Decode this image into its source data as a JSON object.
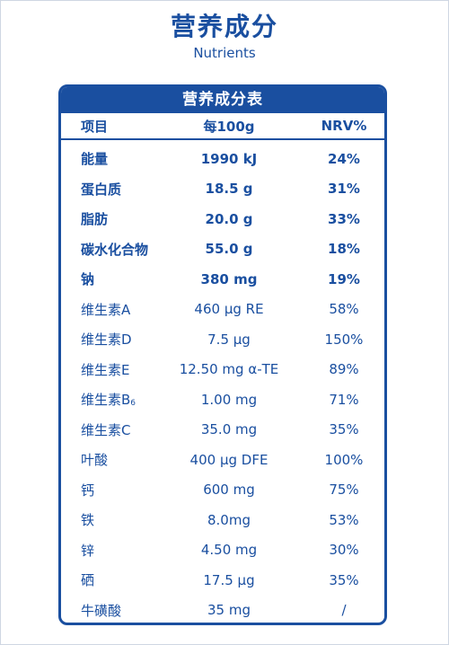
{
  "header": {
    "title": "营养成分",
    "subtitle": "Nutrients"
  },
  "table": {
    "caption": "营养成分表",
    "columns": [
      "项目",
      "每100g",
      "NRV%"
    ],
    "rows": [
      {
        "name": "能量",
        "amount": "1990 kJ",
        "nrv": "24%",
        "bold": true
      },
      {
        "name": "蛋白质",
        "amount": "18.5 g",
        "nrv": "31%",
        "bold": true
      },
      {
        "name": "脂肪",
        "amount": "20.0 g",
        "nrv": "33%",
        "bold": true
      },
      {
        "name": "碳水化合物",
        "amount": "55.0 g",
        "nrv": "18%",
        "bold": true
      },
      {
        "name": "钠",
        "amount": "380 mg",
        "nrv": "19%",
        "bold": true
      },
      {
        "name": "维生素A",
        "amount": "460 μg RE",
        "nrv": "58%",
        "bold": false
      },
      {
        "name": "维生素D",
        "amount": "7.5 μg",
        "nrv": "150%",
        "bold": false
      },
      {
        "name": "维生素E",
        "amount": "12.50 mg α-TE",
        "nrv": "89%",
        "bold": false
      },
      {
        "name": "维生素B",
        "name_sub": "6",
        "amount": "1.00 mg",
        "nrv": "71%",
        "bold": false
      },
      {
        "name": "维生素C",
        "amount": "35.0 mg",
        "nrv": "35%",
        "bold": false
      },
      {
        "name": "叶酸",
        "amount": "400 μg DFE",
        "nrv": "100%",
        "bold": false
      },
      {
        "name": "钙",
        "amount": "600 mg",
        "nrv": "75%",
        "bold": false
      },
      {
        "name": "铁",
        "amount": "8.0mg",
        "nrv": "53%",
        "bold": false
      },
      {
        "name": "锌",
        "amount": "4.50 mg",
        "nrv": "30%",
        "bold": false
      },
      {
        "name": "硒",
        "amount": "17.5 μg",
        "nrv": "35%",
        "bold": false
      },
      {
        "name": "牛磺酸",
        "amount": "35 mg",
        "nrv": "/",
        "bold": false
      }
    ]
  }
}
